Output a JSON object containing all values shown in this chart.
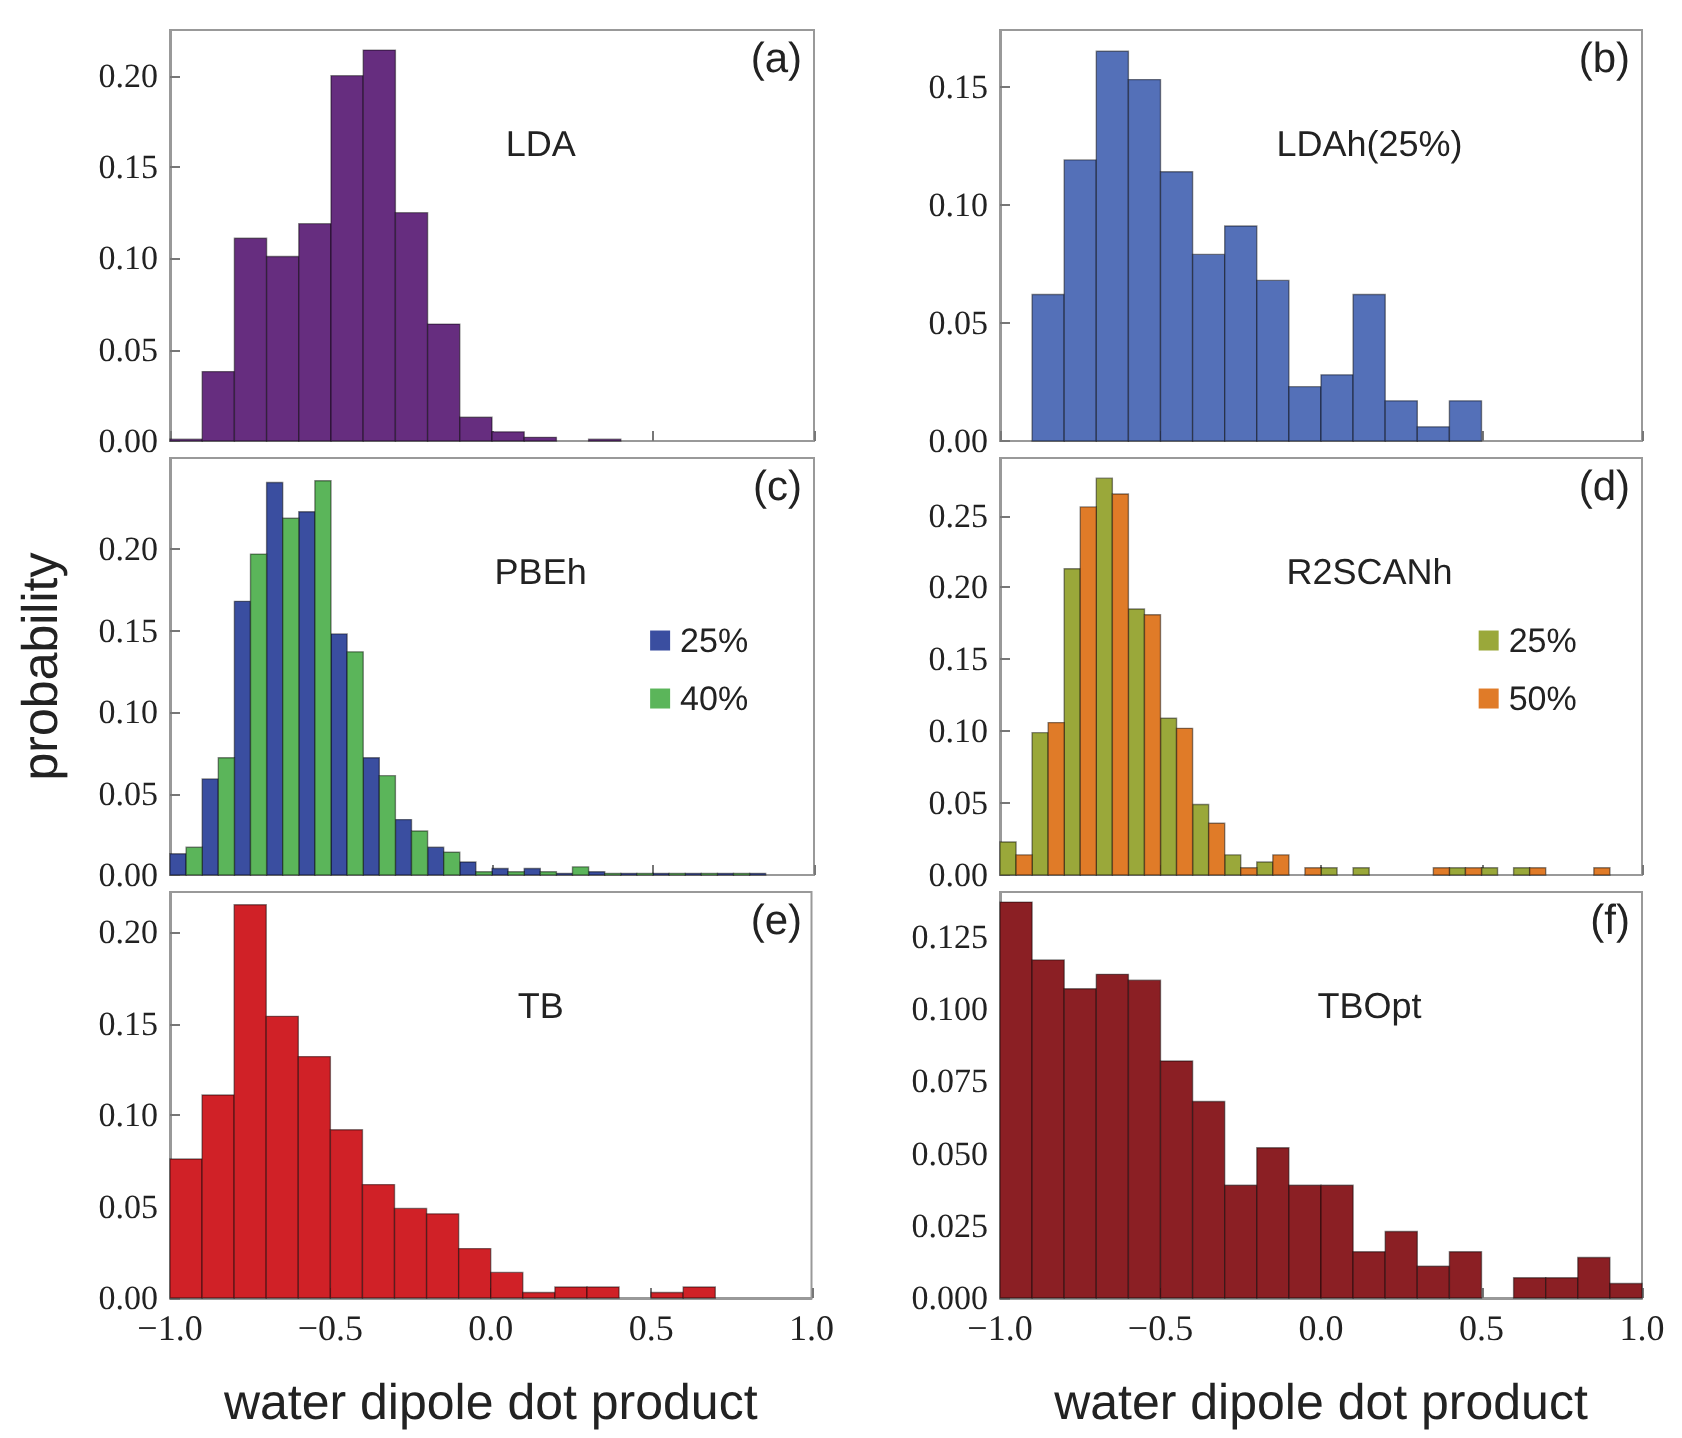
{
  "chart_data": [
    {
      "type": "histogram",
      "title": "LDA",
      "annotations": [
        "(a)"
      ],
      "bins": [
        -1,
        -0.9,
        -0.8,
        -0.7,
        -0.6,
        -0.5,
        -0.4,
        -0.3,
        -0.2,
        -0.1,
        0,
        0.1,
        0.2,
        0.3,
        0.4,
        0.5,
        0.6,
        0.7,
        0.8,
        0.9,
        1
      ],
      "values": [
        0.001,
        0.038,
        0.111,
        0.101,
        0.119,
        0.2,
        0.214,
        0.125,
        0.064,
        0.013,
        0.005,
        0.002,
        0,
        0.001,
        0,
        0,
        0,
        0,
        0,
        0
      ],
      "color": "#662d7f",
      "xlim": [
        -1,
        1
      ],
      "xticks": [
        {
          "value": -1,
          "label": null
        },
        {
          "value": -0.5,
          "label": null
        },
        {
          "value": 0,
          "label": null
        },
        {
          "value": 0.5,
          "label": null
        },
        {
          "value": 1,
          "label": null
        }
      ],
      "ylim": [
        0,
        0.225
      ],
      "yticks": [
        {
          "value": 0,
          "label": "0.00"
        },
        {
          "value": 0.05,
          "label": "0.05"
        },
        {
          "value": 0.1,
          "label": "0.10"
        },
        {
          "value": 0.15,
          "label": "0.15"
        },
        {
          "value": 0.2,
          "label": "0.20"
        }
      ],
      "tick_labels": "y"
    },
    {
      "type": "histogram",
      "title": "LDAh(25%)",
      "annotations": [
        "(b)"
      ],
      "bins": [
        -1,
        -0.9,
        -0.8,
        -0.7,
        -0.6,
        -0.5,
        -0.4,
        -0.3,
        -0.2,
        -0.1,
        0,
        0.1,
        0.2,
        0.3,
        0.4,
        0.5,
        0.6,
        0.7,
        0.8,
        0.9,
        1
      ],
      "values": [
        0,
        0.062,
        0.119,
        0.165,
        0.153,
        0.114,
        0.079,
        0.091,
        0.068,
        0.023,
        0.028,
        0.062,
        0.017,
        0.006,
        0.017,
        0,
        0,
        0,
        0,
        0
      ],
      "color": "#5470b8",
      "xlim": [
        -1,
        1
      ],
      "xticks": [
        {
          "value": -1,
          "label": null
        },
        {
          "value": -0.5,
          "label": null
        },
        {
          "value": 0,
          "label": null
        },
        {
          "value": 0.5,
          "label": null
        },
        {
          "value": 1,
          "label": null
        }
      ],
      "ylim": [
        0,
        0.174
      ],
      "yticks": [
        {
          "value": 0,
          "label": "0.00"
        },
        {
          "value": 0.05,
          "label": "0.05"
        },
        {
          "value": 0.1,
          "label": "0.10"
        },
        {
          "value": 0.15,
          "label": "0.15"
        }
      ],
      "tick_labels": "y"
    },
    {
      "type": "histogram",
      "title": "PBEh",
      "annotations": [
        "(c)"
      ],
      "ylabel": "probability",
      "legend": "right",
      "bins": [
        -1,
        -0.9,
        -0.8,
        -0.7,
        -0.6,
        -0.5,
        -0.4,
        -0.3,
        -0.2,
        -0.1,
        0,
        0.1,
        0.2,
        0.3,
        0.4,
        0.5,
        0.6,
        0.7,
        0.8,
        0.9,
        1
      ],
      "series": [
        {
          "name": "25%",
          "color": "#3a4ea0",
          "values": [
            0.013,
            0.059,
            0.168,
            0.241,
            0.223,
            0.148,
            0.072,
            0.034,
            0.017,
            0.008,
            0.004,
            0.004,
            0.001,
            0.002,
            0.001,
            0.001,
            0.001,
            0.001,
            0.001,
            0
          ]
        },
        {
          "name": "40%",
          "color": "#5bb55a",
          "values": [
            0.017,
            0.072,
            0.197,
            0.219,
            0.242,
            0.137,
            0.061,
            0.027,
            0.014,
            0.002,
            0.002,
            0.002,
            0.005,
            0.001,
            0.001,
            0.001,
            0.001,
            0.001,
            0,
            0
          ]
        }
      ],
      "xlim": [
        -1,
        1
      ],
      "xticks": [
        {
          "value": -1,
          "label": null
        },
        {
          "value": -0.5,
          "label": null
        },
        {
          "value": 0,
          "label": null
        },
        {
          "value": 0.5,
          "label": null
        },
        {
          "value": 1,
          "label": null
        }
      ],
      "ylim": [
        0,
        0.256
      ],
      "yticks": [
        {
          "value": 0,
          "label": "0.00"
        },
        {
          "value": 0.05,
          "label": "0.05"
        },
        {
          "value": 0.1,
          "label": "0.10"
        },
        {
          "value": 0.15,
          "label": "0.15"
        },
        {
          "value": 0.2,
          "label": "0.20"
        }
      ],
      "tick_labels": "y"
    },
    {
      "type": "histogram",
      "title": "R2SCANh",
      "annotations": [
        "(d)"
      ],
      "legend": "right",
      "bins": [
        -1,
        -0.9,
        -0.8,
        -0.7,
        -0.6,
        -0.5,
        -0.4,
        -0.3,
        -0.2,
        -0.1,
        0,
        0.1,
        0.2,
        0.3,
        0.4,
        0.5,
        0.6,
        0.7,
        0.8,
        0.9,
        1
      ],
      "series": [
        {
          "name": "25%",
          "color": "#9aa83a",
          "values": [
            0.023,
            0.099,
            0.213,
            0.276,
            0.185,
            0.109,
            0.049,
            0.014,
            0.009,
            0,
            0.005,
            0.005,
            0,
            0,
            0.005,
            0.005,
            0.005,
            0,
            0,
            0
          ]
        },
        {
          "name": "50%",
          "color": "#e07b28",
          "values": [
            0.014,
            0.106,
            0.256,
            0.265,
            0.181,
            0.102,
            0.036,
            0.005,
            0.014,
            0.005,
            0,
            0,
            0,
            0.005,
            0.005,
            0,
            0.005,
            0,
            0.005,
            0
          ]
        }
      ],
      "xlim": [
        -1,
        1
      ],
      "xticks": [
        {
          "value": -1,
          "label": null
        },
        {
          "value": -0.5,
          "label": null
        },
        {
          "value": 0,
          "label": null
        },
        {
          "value": 0.5,
          "label": null
        },
        {
          "value": 1,
          "label": null
        }
      ],
      "ylim": [
        0,
        0.29
      ],
      "yticks": [
        {
          "value": 0,
          "label": "0.00"
        },
        {
          "value": 0.05,
          "label": "0.05"
        },
        {
          "value": 0.1,
          "label": "0.10"
        },
        {
          "value": 0.15,
          "label": "0.15"
        },
        {
          "value": 0.2,
          "label": "0.20"
        },
        {
          "value": 0.25,
          "label": "0.25"
        }
      ],
      "tick_labels": "y"
    },
    {
      "type": "histogram",
      "title": "TB",
      "annotations": [
        "(e)"
      ],
      "xlabel": "water dipole dot product",
      "bins": [
        -1,
        -0.9,
        -0.8,
        -0.7,
        -0.6,
        -0.5,
        -0.4,
        -0.3,
        -0.2,
        -0.1,
        0,
        0.1,
        0.2,
        0.3,
        0.4,
        0.5,
        0.6,
        0.7,
        0.8,
        0.9,
        1
      ],
      "values": [
        0.076,
        0.111,
        0.215,
        0.154,
        0.132,
        0.092,
        0.062,
        0.049,
        0.046,
        0.027,
        0.014,
        0.003,
        0.006,
        0.006,
        0,
        0.003,
        0.006,
        0,
        0,
        0
      ],
      "color": "#d02127",
      "xlim": [
        -1,
        1
      ],
      "xticks": [
        {
          "value": -1,
          "label": "−1.0"
        },
        {
          "value": -0.5,
          "label": "−0.5"
        },
        {
          "value": 0,
          "label": "0.0"
        },
        {
          "value": 0.5,
          "label": "0.5"
        },
        {
          "value": 1,
          "label": "1.0"
        }
      ],
      "ylim": [
        0,
        0.222
      ],
      "yticks": [
        {
          "value": 0,
          "label": "0.00"
        },
        {
          "value": 0.05,
          "label": "0.05"
        },
        {
          "value": 0.1,
          "label": "0.10"
        },
        {
          "value": 0.15,
          "label": "0.15"
        },
        {
          "value": 0.2,
          "label": "0.20"
        }
      ]
    },
    {
      "type": "histogram",
      "title": "TBOpt",
      "annotations": [
        "(f)"
      ],
      "xlabel": "water dipole dot product",
      "bins": [
        -1,
        -0.9,
        -0.8,
        -0.7,
        -0.6,
        -0.5,
        -0.4,
        -0.3,
        -0.2,
        -0.1,
        0,
        0.1,
        0.2,
        0.3,
        0.4,
        0.5,
        0.6,
        0.7,
        0.8,
        0.9,
        1
      ],
      "values": [
        0.137,
        0.117,
        0.107,
        0.112,
        0.11,
        0.082,
        0.068,
        0.039,
        0.052,
        0.039,
        0.039,
        0.016,
        0.023,
        0.011,
        0.016,
        0,
        0.007,
        0.007,
        0.014,
        0.005
      ],
      "color": "#8b1f24",
      "xlim": [
        -1,
        1
      ],
      "xticks": [
        {
          "value": -1,
          "label": "−1.0"
        },
        {
          "value": -0.5,
          "label": "−0.5"
        },
        {
          "value": 0,
          "label": "0.0"
        },
        {
          "value": 0.5,
          "label": "0.5"
        },
        {
          "value": 1,
          "label": "1.0"
        }
      ],
      "ylim": [
        0,
        0.1405
      ],
      "yticks": [
        {
          "value": 0,
          "label": "0.000"
        },
        {
          "value": 0.025,
          "label": "0.025"
        },
        {
          "value": 0.05,
          "label": "0.050"
        },
        {
          "value": 0.075,
          "label": "0.075"
        },
        {
          "value": 0.1,
          "label": "0.100"
        },
        {
          "value": 0.125,
          "label": "0.125"
        }
      ]
    }
  ]
}
